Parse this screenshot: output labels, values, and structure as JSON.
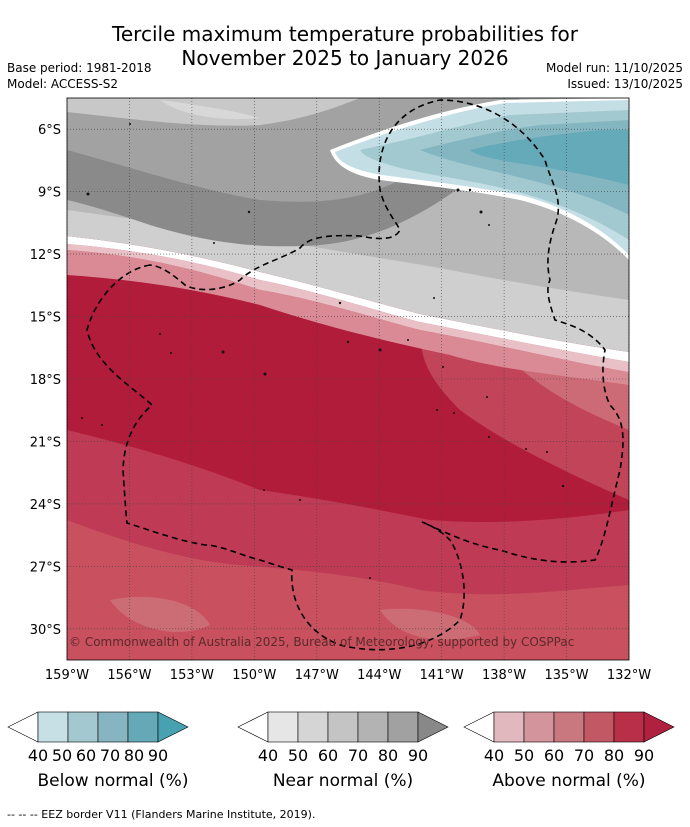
{
  "title": {
    "line1": "Tercile maximum temperature probabilities for",
    "line2": "November 2025 to January 2026"
  },
  "meta": {
    "base_period": "Base period: 1981-2018",
    "model": "Model: ACCESS-S2",
    "model_run": "Model run: 11/10/2025",
    "issued": "Issued: 13/10/2025"
  },
  "map": {
    "lat_labels": [
      "6°S",
      "9°S",
      "12°S",
      "15°S",
      "18°S",
      "21°S",
      "24°S",
      "27°S",
      "30°S"
    ],
    "lon_labels": [
      "159°W",
      "156°W",
      "153°W",
      "150°W",
      "147°W",
      "144°W",
      "141°W",
      "138°W",
      "135°W",
      "132°W"
    ],
    "lat_range": [
      -4.5,
      -31.5
    ],
    "lon_range": [
      -159,
      -132
    ],
    "copyright": "© Commonwealth of Australia 2025, Bureau of Meteorology, supported by COSPPac"
  },
  "legends": [
    {
      "name": "below",
      "title": "Below normal (%)",
      "ticks": [
        "40",
        "50",
        "60",
        "70",
        "80",
        "90"
      ],
      "colors": [
        "#ffffff",
        "#c6e0e6",
        "#a4c8cf",
        "#86b5c1",
        "#65a9b7",
        "#48a1b1"
      ]
    },
    {
      "name": "near",
      "title": "Near normal (%)",
      "ticks": [
        "40",
        "50",
        "60",
        "70",
        "80",
        "90"
      ],
      "colors": [
        "#ffffff",
        "#e6e6e6",
        "#d5d5d5",
        "#c4c4c4",
        "#b3b3b3",
        "#a1a1a1",
        "#888888"
      ]
    },
    {
      "name": "above",
      "title": "Above normal (%)",
      "ticks": [
        "40",
        "50",
        "60",
        "70",
        "80",
        "90"
      ],
      "colors": [
        "#ffffff",
        "#e2b8bf",
        "#d4949c",
        "#c97880",
        "#c35865",
        "#b73048",
        "#b02140"
      ]
    }
  ],
  "footnote": "--  --  -- EEZ border V11 (Flanders Marine Institute, 2019)."
}
